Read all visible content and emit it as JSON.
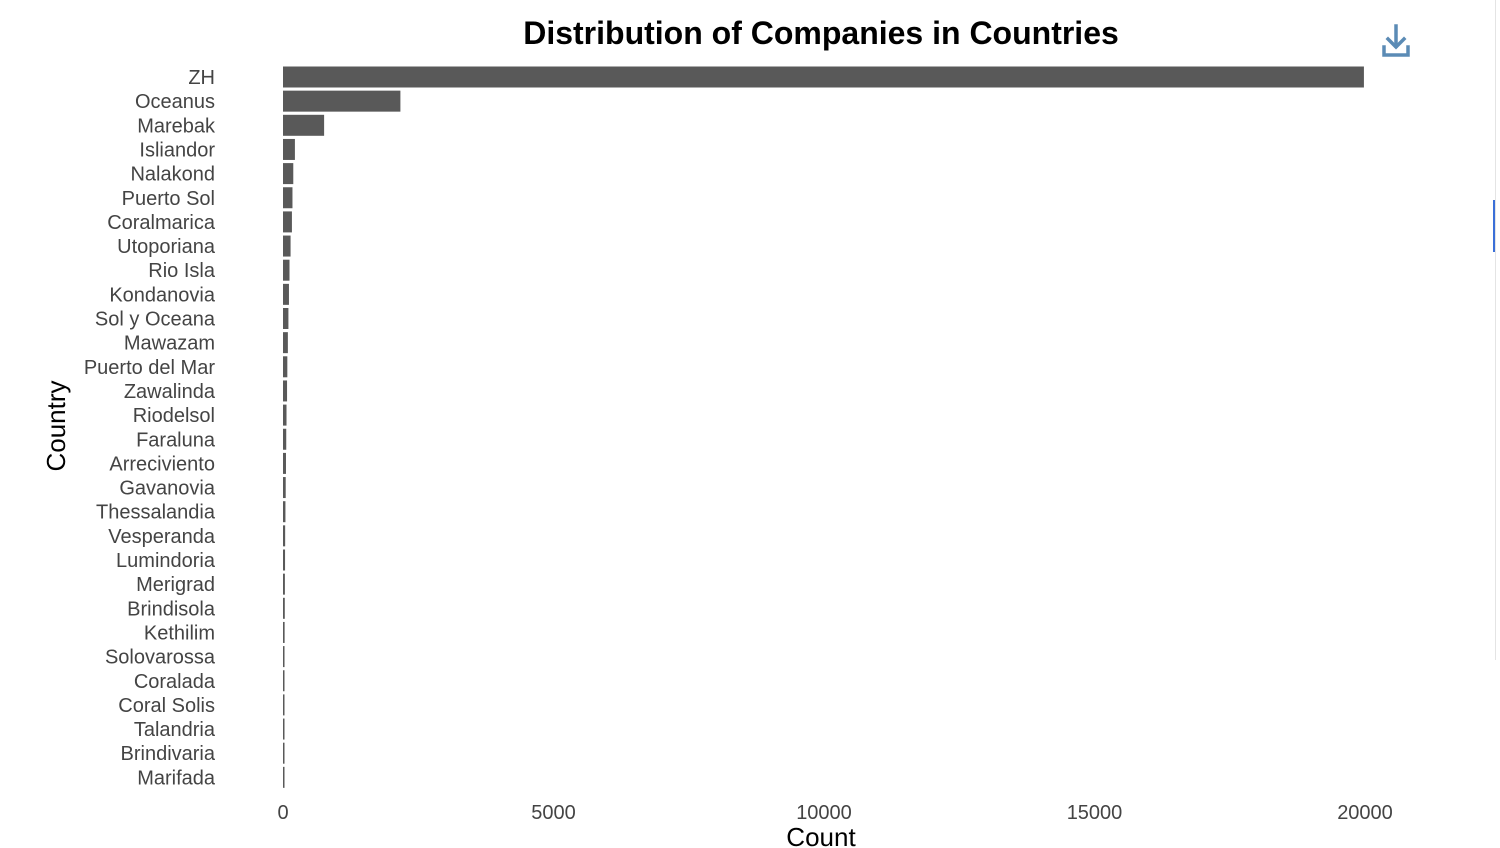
{
  "chart_data": {
    "type": "bar",
    "orientation": "horizontal",
    "title": "Distribution of Companies in Countries",
    "xlabel": "Count",
    "ylabel": "Country",
    "xlim": [
      0,
      20000
    ],
    "x_ticks": [
      0,
      5000,
      10000,
      15000,
      20000
    ],
    "grid": false,
    "bar_color": "#595959",
    "categories": [
      "ZH",
      "Oceanus",
      "Marebak",
      "Isliandor",
      "Nalakond",
      "Puerto Sol",
      "Coralmarica",
      "Utoporiana",
      "Rio Isla",
      "Kondanovia",
      "Sol y Oceana",
      "Mawazam",
      "Puerto del Mar",
      "Zawalinda",
      "Riodelsol",
      "Faraluna",
      "Arreciviento",
      "Gavanovia",
      "Thessalandia",
      "Vesperanda",
      "Lumindoria",
      "Merigrad",
      "Brindisola",
      "Kethilim",
      "Solovarossa",
      "Coralada",
      "Coral Solis",
      "Talandria",
      "Brindivaria",
      "Marifada"
    ],
    "values": [
      19980,
      2170,
      760,
      220,
      190,
      175,
      165,
      140,
      120,
      110,
      100,
      90,
      80,
      75,
      65,
      60,
      55,
      50,
      45,
      40,
      38,
      35,
      33,
      30,
      28,
      25,
      23,
      20,
      18,
      15
    ]
  },
  "toolbar": {
    "download_icon": "download-icon",
    "download_color": "#5b8bb5"
  }
}
